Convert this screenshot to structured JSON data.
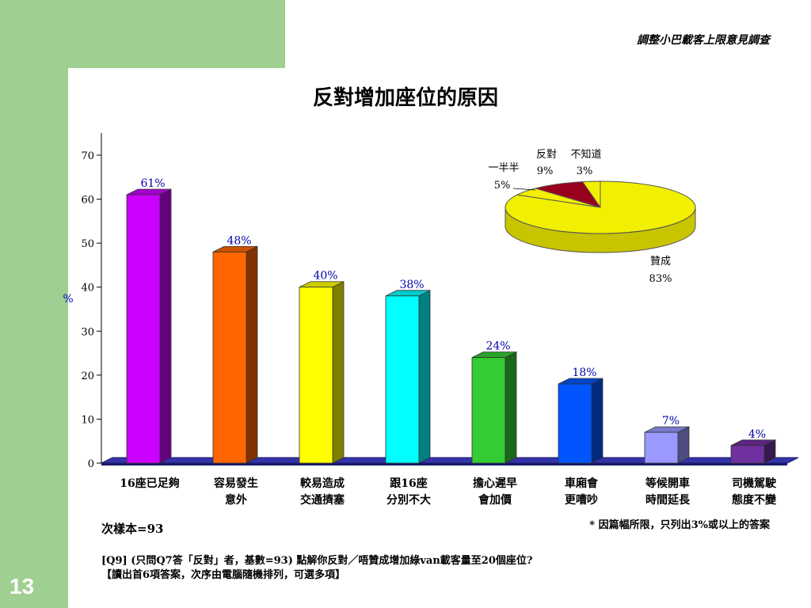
{
  "header": {
    "survey_title": "調整小巴載客上限意見調查",
    "slide_number": "13"
  },
  "chart_data": [
    {
      "type": "bar",
      "title": "反對增加座位的原因",
      "ylabel": "%",
      "ylim": [
        0,
        70
      ],
      "yticks": [
        "0",
        "10",
        "20",
        "30",
        "40",
        "50",
        "60",
        "70"
      ],
      "categories": [
        [
          "16座已足夠"
        ],
        [
          "容易發生",
          "意外"
        ],
        [
          "較易造成",
          "交通擠塞"
        ],
        [
          "跟16座",
          "分別不大"
        ],
        [
          "擔心遲早",
          "會加價"
        ],
        [
          "車廂會",
          "更嘈吵"
        ],
        [
          "等候開車",
          "時間延長"
        ],
        [
          "司機駕駛",
          "態度不變"
        ]
      ],
      "values": [
        61,
        48,
        40,
        38,
        24,
        18,
        7,
        4
      ],
      "data_labels": [
        "61%",
        "48%",
        "40%",
        "38%",
        "24%",
        "18%",
        "7%",
        "4%"
      ],
      "colors": [
        "#cc00ff",
        "#ff6600",
        "#ffff00",
        "#00ffff",
        "#33cc33",
        "#0055ff",
        "#9999ff",
        "#7030a0"
      ],
      "grid": false
    },
    {
      "type": "pie",
      "slices": [
        {
          "label": "贊成",
          "value": 83,
          "text": "83%",
          "color": "#f2f000"
        },
        {
          "label": "一半半",
          "value": 5,
          "text": "5%",
          "color": "#f2f000"
        },
        {
          "label": "反對",
          "value": 9,
          "text": "9%",
          "color": "#99001e"
        },
        {
          "label": "不知道",
          "value": 3,
          "text": "3%",
          "color": "#f2f000"
        }
      ]
    }
  ],
  "notes": {
    "sample": "次樣本=93",
    "footnote": "* 因篇幅所限，只列出3%或以上的答案",
    "question_line1": "[Q9] (只問Q7答「反對」者，基數=93) 點解你反對／唔贊成增加綠van載客量至20個座位?",
    "question_line2": "【讀出首6項答案，次序由電腦隨機排列，可選多項】"
  }
}
